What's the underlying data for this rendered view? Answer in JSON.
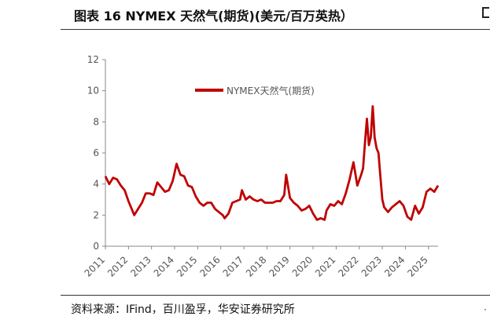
{
  "header": {
    "title": "图表 16 NYMEX 天然气(期货)(美元/百万英热）"
  },
  "footer": {
    "source": "资料来源：IFind，百川盈孚，华安证券研究所"
  },
  "chart_data": {
    "type": "line",
    "title": "图表 16 NYMEX 天然气(期货)(美元/百万英热）",
    "xlabel": "",
    "ylabel": "",
    "ylim": [
      0,
      12
    ],
    "xlim": [
      "2011-01",
      "2025-06"
    ],
    "yticks": [
      "0",
      "2",
      "4",
      "6",
      "8",
      "10",
      "12"
    ],
    "xticks": [
      "2011",
      "2012",
      "2013",
      "2014",
      "2015",
      "2016",
      "2017",
      "2018",
      "2019",
      "2020",
      "2021",
      "2022",
      "2023",
      "2024",
      "2025"
    ],
    "grid": false,
    "legend_position": "top-center",
    "series": [
      {
        "name": "NYMEX天然气(期货)",
        "color": "#c00000",
        "x": [
          "2011-01",
          "2011-03",
          "2011-05",
          "2011-07",
          "2011-09",
          "2011-11",
          "2012-01",
          "2012-04",
          "2012-06",
          "2012-08",
          "2012-10",
          "2012-12",
          "2013-02",
          "2013-04",
          "2013-06",
          "2013-08",
          "2013-10",
          "2013-12",
          "2014-02",
          "2014-04",
          "2014-06",
          "2014-08",
          "2014-10",
          "2014-12",
          "2015-02",
          "2015-04",
          "2015-06",
          "2015-08",
          "2015-10",
          "2015-12",
          "2016-02",
          "2016-03",
          "2016-05",
          "2016-07",
          "2016-09",
          "2016-11",
          "2016-12",
          "2017-02",
          "2017-04",
          "2017-06",
          "2017-08",
          "2017-10",
          "2017-12",
          "2018-02",
          "2018-04",
          "2018-06",
          "2018-08",
          "2018-10",
          "2018-11",
          "2019-01",
          "2019-03",
          "2019-05",
          "2019-07",
          "2019-09",
          "2019-11",
          "2020-01",
          "2020-03",
          "2020-05",
          "2020-07",
          "2020-08",
          "2020-10",
          "2020-12",
          "2021-02",
          "2021-04",
          "2021-06",
          "2021-08",
          "2021-10",
          "2021-12",
          "2022-02",
          "2022-03",
          "2022-04",
          "2022-05",
          "2022-06",
          "2022-07",
          "2022-08",
          "2022-09",
          "2022-10",
          "2022-11",
          "2022-12",
          "2023-01",
          "2023-02",
          "2023-04",
          "2023-06",
          "2023-08",
          "2023-10",
          "2023-12",
          "2024-02",
          "2024-04",
          "2024-06",
          "2024-08",
          "2024-10",
          "2024-12",
          "2025-02",
          "2025-04",
          "2025-06"
        ],
        "values": [
          4.5,
          4.0,
          4.4,
          4.3,
          3.9,
          3.6,
          2.9,
          2.0,
          2.4,
          2.8,
          3.4,
          3.4,
          3.3,
          4.1,
          3.8,
          3.5,
          3.6,
          4.2,
          5.3,
          4.6,
          4.5,
          3.9,
          3.8,
          3.2,
          2.8,
          2.6,
          2.8,
          2.8,
          2.4,
          2.2,
          2.0,
          1.8,
          2.1,
          2.8,
          2.9,
          3.0,
          3.6,
          3.0,
          3.2,
          3.0,
          2.9,
          3.0,
          2.8,
          2.8,
          2.8,
          2.9,
          2.9,
          3.3,
          4.6,
          3.1,
          2.8,
          2.6,
          2.3,
          2.4,
          2.6,
          2.1,
          1.7,
          1.8,
          1.7,
          2.3,
          2.7,
          2.6,
          2.9,
          2.7,
          3.4,
          4.3,
          5.4,
          3.9,
          4.6,
          5.0,
          6.7,
          8.2,
          6.5,
          7.0,
          9.0,
          7.0,
          6.3,
          6.0,
          4.5,
          3.0,
          2.5,
          2.2,
          2.5,
          2.7,
          2.9,
          2.6,
          1.9,
          1.7,
          2.6,
          2.1,
          2.5,
          3.5,
          3.7,
          3.5,
          3.9
        ]
      }
    ]
  }
}
